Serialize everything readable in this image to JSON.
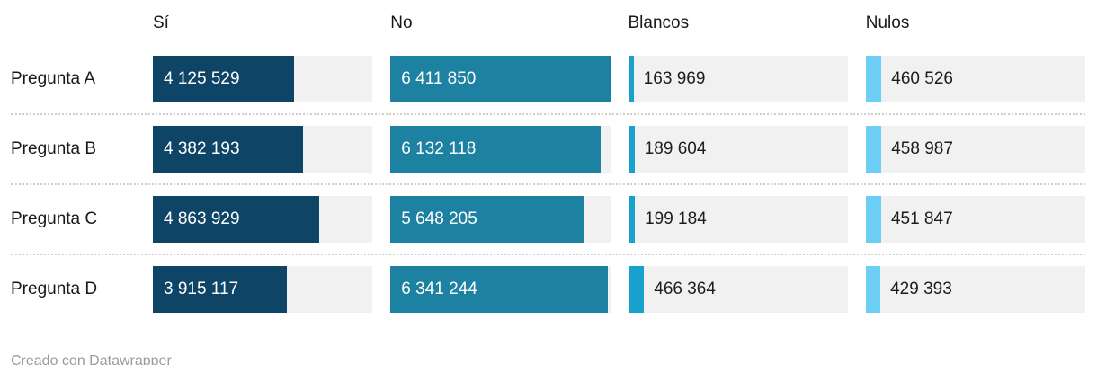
{
  "chart_data": {
    "type": "bar",
    "orientation": "horizontal",
    "title": "",
    "categories": [
      "Pregunta A",
      "Pregunta B",
      "Pregunta C",
      "Pregunta D"
    ],
    "series": [
      {
        "name": "Sí",
        "color": "#0e4566",
        "values": [
          4125529,
          4382193,
          4863929,
          3915117
        ],
        "labels": [
          "4 125 529",
          "4 382 193",
          "4 863 929",
          "3 915 117"
        ]
      },
      {
        "name": "No",
        "color": "#1d81a2",
        "values": [
          6411850,
          6132118,
          5648205,
          6341244
        ],
        "labels": [
          "6 411 850",
          "6 132 118",
          "5 648 205",
          "6 341 244"
        ]
      },
      {
        "name": "Blancos",
        "color": "#18a1cd",
        "values": [
          163969,
          189604,
          199184,
          466364
        ],
        "labels": [
          "163 969",
          "189 604",
          "199 184",
          "466 364"
        ]
      },
      {
        "name": "Nulos",
        "color": "#6ccef5",
        "values": [
          460526,
          458987,
          451847,
          429393
        ],
        "labels": [
          "460 526",
          "458 987",
          "451 847",
          "429 393"
        ]
      }
    ],
    "max_value": 6411850,
    "track_color": "#f1f1f1",
    "grid": false,
    "legend_position": "column-headers"
  },
  "footer": {
    "credit": "Creado con Datawrapper"
  }
}
